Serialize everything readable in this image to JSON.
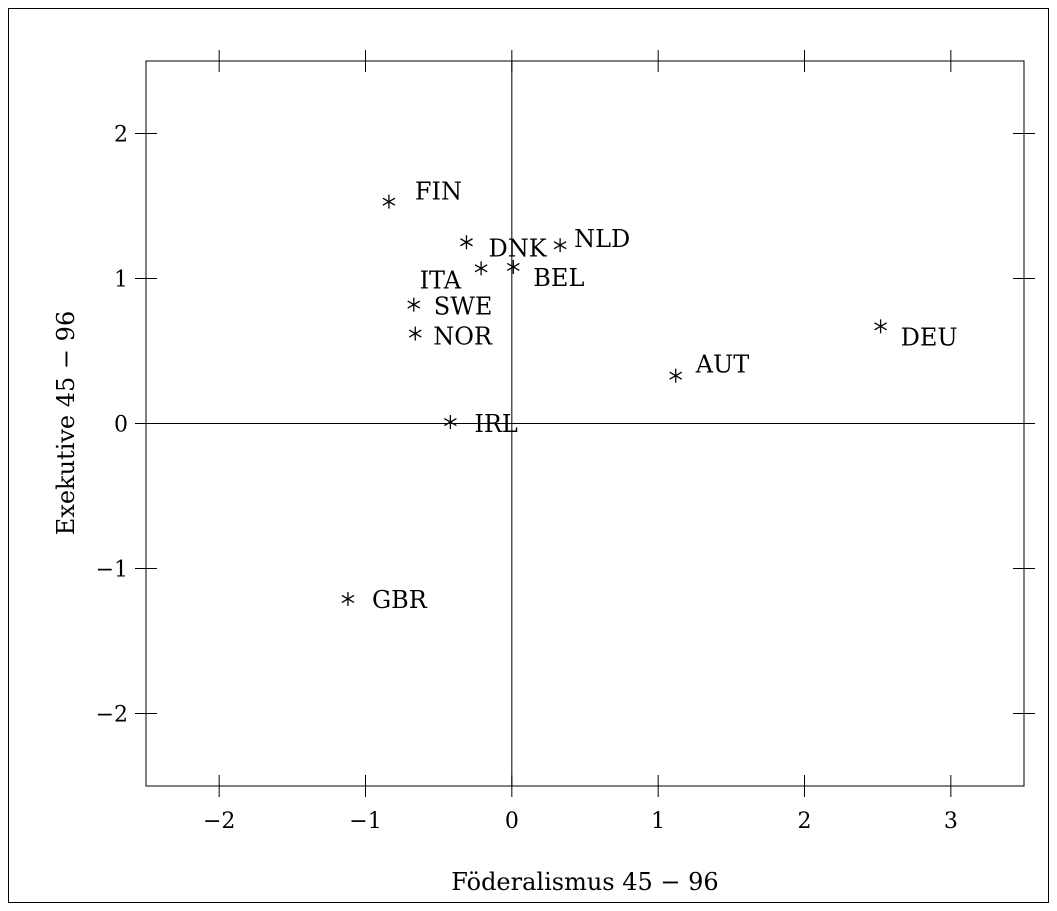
{
  "chart_data": {
    "type": "scatter",
    "xlabel": "Föderalismus 45 − 96",
    "ylabel": "Exekutive 45 − 96",
    "xlim": [
      -2.5,
      3.5
    ],
    "ylim": [
      -2.5,
      2.5
    ],
    "xticks": [
      -2,
      -1,
      0,
      1,
      2,
      3
    ],
    "yticks": [
      -2,
      -1,
      0,
      1,
      2
    ],
    "xtick_labels": [
      "−2",
      "−1",
      "0",
      "1",
      "2",
      "3"
    ],
    "ytick_labels": [
      "−2",
      "−1",
      "0",
      "1",
      "2"
    ],
    "marker": "*",
    "reference_lines": {
      "x": 0,
      "y": 0
    },
    "points": [
      {
        "label": "FIN",
        "x": -0.84,
        "y": 1.53
      },
      {
        "label": "DNK",
        "x": -0.31,
        "y": 1.25
      },
      {
        "label": "NLD",
        "x": 0.33,
        "y": 1.23
      },
      {
        "label": "ITA",
        "x": -0.21,
        "y": 1.07
      },
      {
        "label": "BEL",
        "x": 0.01,
        "y": 1.08
      },
      {
        "label": "SWE",
        "x": -0.67,
        "y": 0.82
      },
      {
        "label": "NOR",
        "x": -0.66,
        "y": 0.62
      },
      {
        "label": "DEU",
        "x": 2.52,
        "y": 0.67
      },
      {
        "label": "AUT",
        "x": 1.12,
        "y": 0.33
      },
      {
        "label": "IRL",
        "x": -0.42,
        "y": 0.01
      },
      {
        "label": "GBR",
        "x": -1.12,
        "y": -1.21
      }
    ]
  }
}
